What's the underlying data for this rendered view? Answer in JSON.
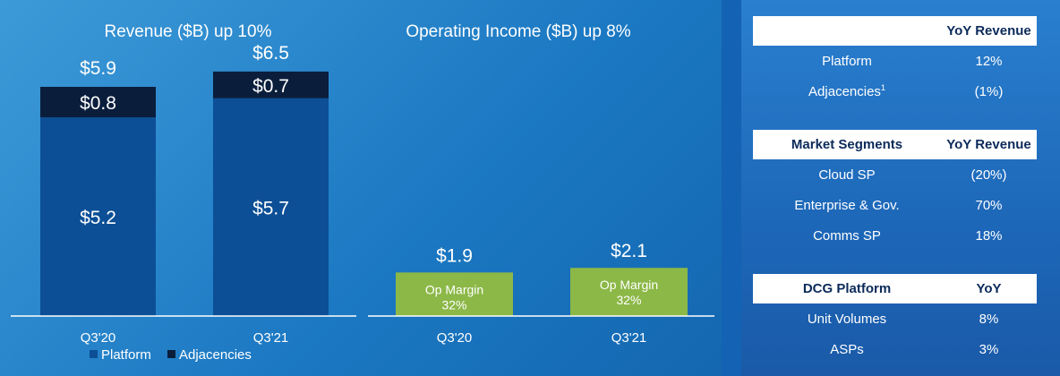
{
  "chart_data": [
    {
      "type": "bar",
      "stacked": true,
      "title": "Revenue ($B) up 10%",
      "categories": [
        "Q3'20",
        "Q3'21"
      ],
      "series": [
        {
          "name": "Platform",
          "values": [
            5.2,
            5.7
          ],
          "labels": [
            "$5.2",
            "$5.7"
          ],
          "color": "#0c4f96"
        },
        {
          "name": "Adjacencies",
          "values": [
            0.8,
            0.7
          ],
          "labels": [
            "$0.8",
            "$0.7"
          ],
          "color": "#0a1e3c"
        }
      ],
      "totals": [
        "$5.9",
        "$6.5"
      ],
      "ylim": [
        0,
        7.5
      ],
      "legend": "bottom-left",
      "grid": false
    },
    {
      "type": "bar",
      "title": "Operating Income ($B) up 8%",
      "categories": [
        "Q3'20",
        "Q3'21"
      ],
      "values": [
        1.9,
        2.1
      ],
      "labels": [
        "$1.9",
        "$2.1"
      ],
      "annotations": [
        {
          "line1": "Op Margin",
          "line2": "32%"
        },
        {
          "line1": "Op Margin",
          "line2": "32%"
        }
      ],
      "color": "#8cb847",
      "ylim": [
        0,
        7.5
      ],
      "grid": false
    }
  ],
  "tables": {
    "revenue": {
      "header": [
        "",
        "YoY Revenue"
      ],
      "rows": [
        {
          "label": "Platform",
          "value": "12%",
          "sup": ""
        },
        {
          "label": "Adjacencies",
          "value": "(1%)",
          "sup": "1"
        }
      ]
    },
    "segments": {
      "header": [
        "Market Segments",
        "YoY Revenue"
      ],
      "rows": [
        {
          "label": "Cloud SP",
          "value": "(20%)"
        },
        {
          "label": "Enterprise & Gov.",
          "value": "70%"
        },
        {
          "label": "Comms SP",
          "value": "18%"
        }
      ]
    },
    "platform": {
      "header": [
        "DCG Platform",
        "YoY"
      ],
      "rows": [
        {
          "label": "Unit Volumes",
          "value": "8%"
        },
        {
          "label": "ASPs",
          "value": "3%"
        }
      ]
    }
  }
}
